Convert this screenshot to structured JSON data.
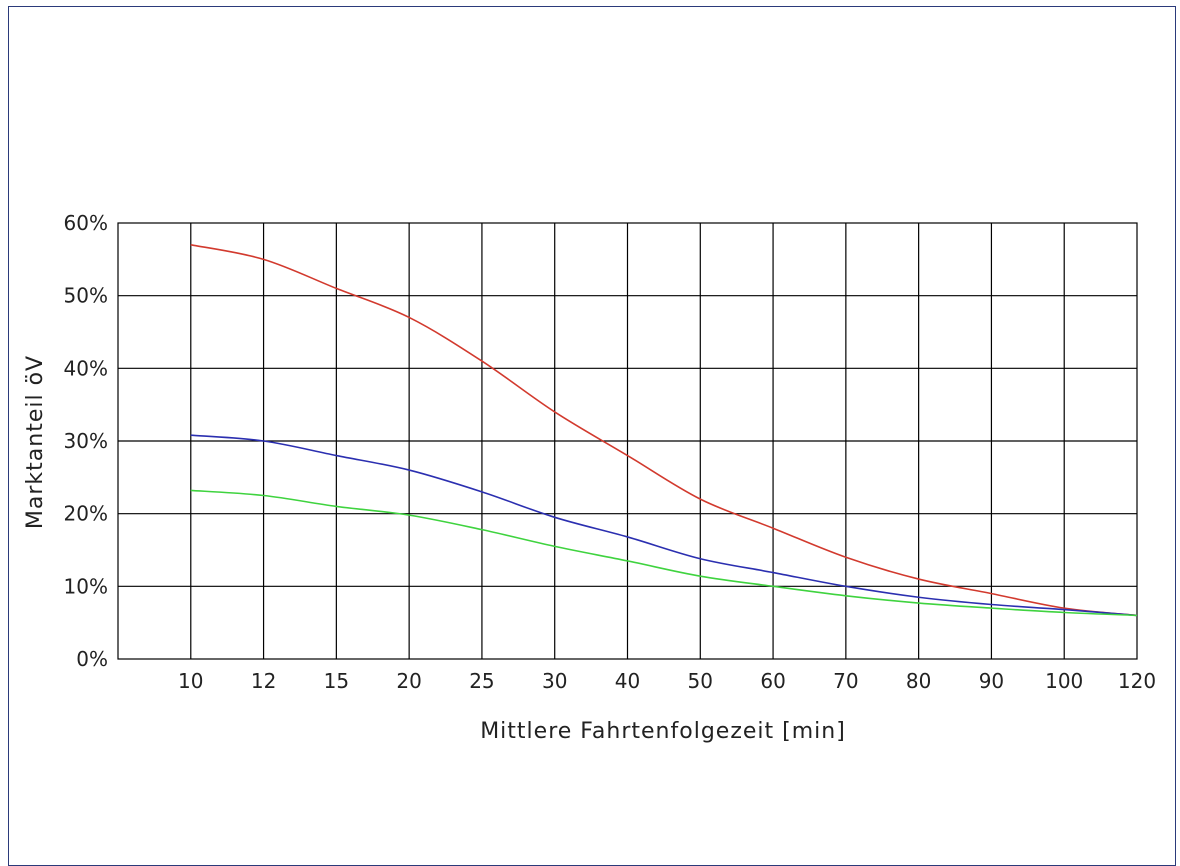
{
  "chart_data": {
    "type": "line",
    "xlabel": "Mittlere Fahrtenfolgezeit [min]",
    "ylabel": "Marktanteil öV",
    "x_ticks": [
      "10",
      "12",
      "15",
      "20",
      "25",
      "30",
      "40",
      "50",
      "60",
      "70",
      "80",
      "90",
      "100",
      "120"
    ],
    "y_ticks": [
      "0%",
      "10%",
      "20%",
      "30%",
      "40%",
      "50%",
      "60%"
    ],
    "ylim": [
      0,
      60
    ],
    "grid": true,
    "x": [
      10,
      12,
      15,
      20,
      25,
      30,
      40,
      50,
      60,
      70,
      80,
      90,
      100,
      120
    ],
    "series": [
      {
        "color": "#d23a2e",
        "values": [
          57,
          55,
          51,
          47,
          41,
          34,
          28,
          22,
          18,
          14,
          11,
          9,
          7,
          6
        ]
      },
      {
        "color": "#2b2fb0",
        "values": [
          30.8,
          30,
          28,
          26,
          23,
          19.5,
          16.8,
          13.8,
          11.9,
          10,
          8.5,
          7.5,
          6.8,
          6
        ]
      },
      {
        "color": "#3fd33f",
        "values": [
          23.2,
          22.5,
          21,
          19.8,
          17.8,
          15.5,
          13.5,
          11.4,
          10,
          8.7,
          7.7,
          7,
          6.4,
          6
        ]
      }
    ]
  }
}
